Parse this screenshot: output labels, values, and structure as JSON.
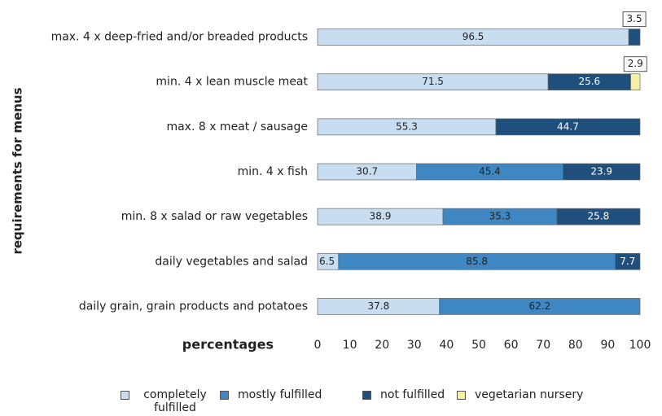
{
  "chart_data": {
    "type": "stacked-barh",
    "y_label": "requirements for menus",
    "x_label": "percentages",
    "categories": [
      "max. 4 x deep-fried and/or breaded products",
      "min. 4 x lean muscle meat",
      "max. 8 x meat / sausage",
      "min. 4 x fish",
      "min. 8 x salad or raw vegetables",
      "daily vegetables and salad",
      "daily grain, grain products and potatoes"
    ],
    "series": [
      {
        "name": "completely fulfilled",
        "color": "#c9ddf0",
        "values": [
          96.5,
          71.5,
          55.3,
          30.7,
          38.9,
          6.5,
          37.8
        ]
      },
      {
        "name": "mostly fulfilled",
        "color": "#3f87c2",
        "values": [
          null,
          null,
          null,
          45.4,
          35.3,
          85.8,
          62.2
        ]
      },
      {
        "name": "not fulfilled",
        "color": "#1f4f7c",
        "values": [
          3.5,
          25.6,
          44.7,
          23.9,
          25.8,
          7.7,
          null
        ]
      },
      {
        "name": "vegetarian nursery",
        "color": "#f6f0a6",
        "values": [
          null,
          2.9,
          null,
          null,
          null,
          null,
          null
        ]
      }
    ],
    "xlim": [
      0,
      100
    ],
    "xticks": [
      0,
      10,
      20,
      30,
      40,
      50,
      60,
      70,
      80,
      90,
      100
    ],
    "grid": false
  }
}
